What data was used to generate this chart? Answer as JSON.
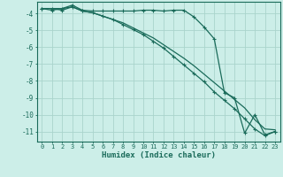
{
  "xlabel": "Humidex (Indice chaleur)",
  "bg_color": "#cceee8",
  "grid_color": "#aad4cc",
  "line_color": "#1a6b5a",
  "spine_color": "#1a6b5a",
  "xlim": [
    -0.5,
    23.5
  ],
  "ylim": [
    -11.6,
    -3.3
  ],
  "yticks": [
    -4,
    -5,
    -6,
    -7,
    -8,
    -9,
    -10,
    -11
  ],
  "xticks": [
    0,
    1,
    2,
    3,
    4,
    5,
    6,
    7,
    8,
    9,
    10,
    11,
    12,
    13,
    14,
    15,
    16,
    17,
    18,
    19,
    20,
    21,
    22,
    23
  ],
  "line1_x": [
    0,
    1,
    2,
    3,
    4,
    5,
    6,
    7,
    8,
    9,
    10,
    11,
    12,
    13,
    14,
    15,
    16,
    17,
    18,
    19,
    20,
    21,
    22,
    23
  ],
  "line1_y": [
    -3.7,
    -3.8,
    -3.7,
    -3.5,
    -3.8,
    -3.85,
    -3.85,
    -3.85,
    -3.85,
    -3.85,
    -3.8,
    -3.8,
    -3.85,
    -3.8,
    -3.8,
    -4.2,
    -4.8,
    -5.5,
    -8.7,
    -9.0,
    -11.1,
    -10.0,
    -11.2,
    -11.0
  ],
  "line2_x": [
    0,
    1,
    2,
    3,
    4,
    5,
    6,
    7,
    8,
    9,
    10,
    11,
    12,
    13,
    14,
    15,
    16,
    17,
    18,
    19,
    20,
    21,
    22,
    23
  ],
  "line2_y": [
    -3.7,
    -3.7,
    -3.7,
    -3.6,
    -3.85,
    -3.95,
    -4.15,
    -4.35,
    -4.55,
    -4.85,
    -5.15,
    -5.45,
    -5.85,
    -6.25,
    -6.65,
    -7.1,
    -7.6,
    -8.1,
    -8.6,
    -9.1,
    -9.6,
    -10.3,
    -10.85,
    -10.9
  ],
  "line3_x": [
    0,
    1,
    2,
    3,
    4,
    5,
    6,
    7,
    8,
    9,
    10,
    11,
    12,
    13,
    14,
    15,
    16,
    17,
    18,
    19,
    20,
    21,
    22,
    23
  ],
  "line3_y": [
    -3.7,
    -3.7,
    -3.8,
    -3.6,
    -3.85,
    -3.95,
    -4.15,
    -4.35,
    -4.65,
    -4.95,
    -5.25,
    -5.65,
    -6.05,
    -6.55,
    -7.05,
    -7.55,
    -8.05,
    -8.65,
    -9.15,
    -9.65,
    -10.25,
    -10.85,
    -11.25,
    -11.0
  ]
}
